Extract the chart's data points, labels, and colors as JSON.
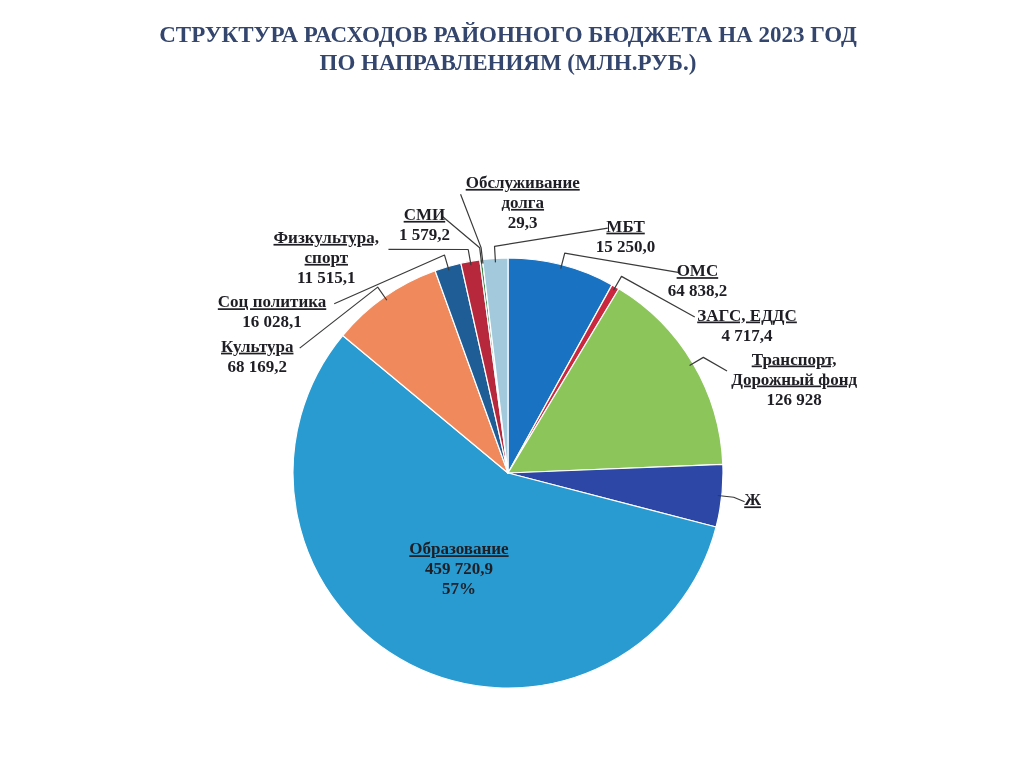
{
  "chart_data": {
    "type": "pie",
    "title": "СТРУКТУРА РАСХОДОВ РАЙОННОГО БЮДЖЕТА НА 2023 ГОД ПО НАПРАВЛЕНИЯМ (МЛН.РУБ.)",
    "categories": [
      "ОМС",
      "ЗАГС, ЕДДС",
      "Транспорт, Дорожный фонд",
      "Ж",
      "Образование",
      "Культура",
      "Соц политика",
      "Физкультура, спорт",
      "СМИ",
      "Обслуживание долга",
      "МБТ"
    ],
    "values": [
      64838.2,
      4717.4,
      126928,
      37753,
      459720.9,
      68169.2,
      16028.1,
      11515.1,
      1579.2,
      29.3,
      15250.0
    ],
    "colors": [
      "#1a73c2",
      "#c9283f",
      "#8cc65a",
      "#2c47a6",
      "#2a9bd0",
      "#f08a5d",
      "#1f5d96",
      "#b8283c",
      "#3f8a4f",
      "#5a8f3c",
      "#a3c9dc"
    ],
    "value_labels": [
      "64 838,2",
      "4 717,4",
      "126 928",
      null,
      "459 720,9",
      "68 169,2",
      "16 028,1",
      "11 515,1",
      "1 579,2",
      "29,3",
      "15 250,0"
    ],
    "annotations": [
      {
        "text": "57%",
        "x": "Образование"
      }
    ]
  }
}
